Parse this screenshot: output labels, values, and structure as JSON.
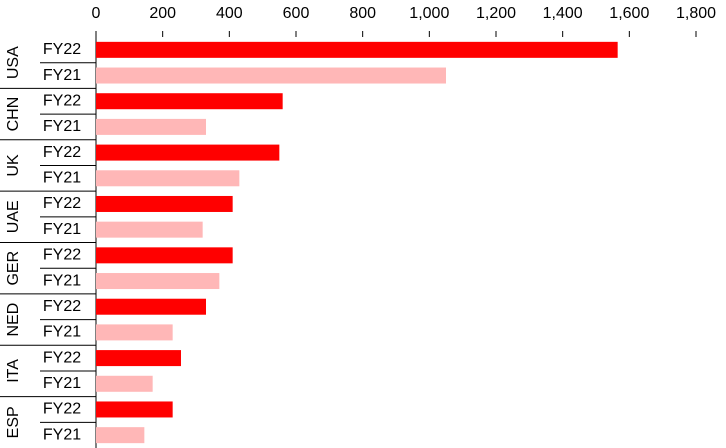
{
  "chart_data": {
    "type": "bar",
    "orientation": "horizontal",
    "categories": [
      "USA",
      "CHN",
      "UK",
      "UAE",
      "GER",
      "NED",
      "ITA",
      "ESP"
    ],
    "series": [
      {
        "name": "FY22",
        "color": "#ff0000",
        "values": [
          1565,
          560,
          550,
          410,
          410,
          330,
          255,
          230
        ]
      },
      {
        "name": "FY21",
        "color": "#ffb7b7",
        "values": [
          1050,
          330,
          430,
          320,
          370,
          230,
          170,
          145
        ]
      }
    ],
    "xlim": [
      0,
      1800
    ],
    "xticks": [
      0,
      200,
      400,
      600,
      800,
      {
        "value": 1000,
        "label": "1,000"
      },
      {
        "value": 1200,
        "label": "1,200"
      },
      {
        "value": 1400,
        "label": "1,400"
      },
      {
        "value": 1600,
        "label": "1,600"
      },
      {
        "value": 1800,
        "label": "1,800"
      }
    ]
  }
}
